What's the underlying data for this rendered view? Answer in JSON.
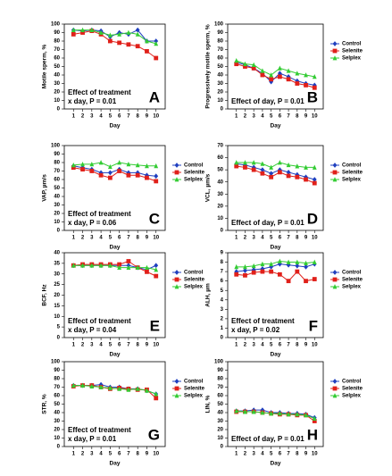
{
  "chart_data": [
    {
      "type": "line",
      "panel_label": "A",
      "ylabel": "Motile sperm, %",
      "xlabel": "Day",
      "annotation": [
        "Effect of treatment",
        "x day, P = 0.01"
      ],
      "legend": false,
      "x": [
        1,
        2,
        3,
        4,
        5,
        6,
        7,
        8,
        9,
        10
      ],
      "xlim": [
        0,
        11
      ],
      "xticks": [
        1,
        2,
        3,
        4,
        5,
        6,
        7,
        8,
        9,
        10
      ],
      "ylim": [
        0,
        100
      ],
      "yticks": [
        0,
        10,
        20,
        30,
        40,
        50,
        60,
        70,
        80,
        90,
        100
      ],
      "series": [
        {
          "name": "Control",
          "color": "#1f3fbf",
          "marker": "diamond",
          "values": [
            93,
            92,
            93,
            92,
            85,
            90,
            88,
            93,
            80,
            80
          ]
        },
        {
          "name": "Selenite",
          "color": "#e0201a",
          "marker": "square",
          "values": [
            88,
            90,
            92,
            88,
            80,
            78,
            76,
            74,
            68,
            60
          ]
        },
        {
          "name": "Selplex",
          "color": "#33cc33",
          "marker": "triangle",
          "values": [
            93,
            93,
            93,
            90,
            87,
            88,
            90,
            88,
            80,
            77
          ]
        }
      ]
    },
    {
      "type": "line",
      "panel_label": "B",
      "ylabel": "Progressively motile sperm, %",
      "xlabel": "Day",
      "annotation": [
        "Effect of day, P = 0.01"
      ],
      "legend": true,
      "x": [
        1,
        2,
        3,
        4,
        5,
        6,
        7,
        8,
        9,
        10
      ],
      "xlim": [
        0,
        11
      ],
      "xticks": [
        1,
        2,
        3,
        4,
        5,
        6,
        7,
        8,
        9,
        10
      ],
      "ylim": [
        0,
        100
      ],
      "yticks": [
        0,
        10,
        20,
        30,
        40,
        50,
        60,
        70,
        80,
        90,
        100
      ],
      "series": [
        {
          "name": "Control",
          "color": "#1f3fbf",
          "marker": "diamond",
          "values": [
            55,
            52,
            48,
            42,
            32,
            42,
            38,
            33,
            30,
            28
          ]
        },
        {
          "name": "Selenite",
          "color": "#e0201a",
          "marker": "square",
          "values": [
            53,
            50,
            48,
            40,
            35,
            38,
            35,
            30,
            28,
            25
          ]
        },
        {
          "name": "Selplex",
          "color": "#33cc33",
          "marker": "triangle",
          "values": [
            57,
            53,
            52,
            45,
            40,
            48,
            45,
            42,
            40,
            38
          ]
        }
      ]
    },
    {
      "type": "line",
      "panel_label": "C",
      "ylabel": "VAP, µm/s",
      "xlabel": "Day",
      "annotation": [
        "Effect of treatment",
        "x day, P = 0.06"
      ],
      "legend": true,
      "x": [
        1,
        2,
        3,
        4,
        5,
        6,
        7,
        8,
        9,
        10
      ],
      "xlim": [
        0,
        11
      ],
      "xticks": [
        1,
        2,
        3,
        4,
        5,
        6,
        7,
        8,
        9,
        10
      ],
      "ylim": [
        0,
        100
      ],
      "yticks": [
        0,
        10,
        20,
        30,
        40,
        50,
        60,
        70,
        80,
        90,
        100
      ],
      "series": [
        {
          "name": "Control",
          "color": "#1f3fbf",
          "marker": "diamond",
          "values": [
            76,
            74,
            72,
            68,
            68,
            72,
            68,
            68,
            65,
            64
          ]
        },
        {
          "name": "Selenite",
          "color": "#e0201a",
          "marker": "square",
          "values": [
            74,
            72,
            70,
            65,
            62,
            70,
            65,
            65,
            62,
            58
          ]
        },
        {
          "name": "Selplex",
          "color": "#33cc33",
          "marker": "triangle",
          "values": [
            77,
            78,
            78,
            80,
            75,
            80,
            78,
            77,
            76,
            76
          ]
        }
      ]
    },
    {
      "type": "line",
      "panel_label": "D",
      "ylabel": "VCL, µm/s",
      "xlabel": "Day",
      "annotation": [
        "Effect of day, P = 0.01"
      ],
      "legend": true,
      "x": [
        1,
        2,
        3,
        4,
        5,
        6,
        7,
        8,
        9,
        10
      ],
      "xlim": [
        0,
        11
      ],
      "xticks": [
        1,
        2,
        3,
        4,
        5,
        6,
        7,
        8,
        9,
        10
      ],
      "ylim": [
        0,
        70
      ],
      "yticks": [
        0,
        10,
        20,
        30,
        40,
        50,
        60,
        70
      ],
      "series": [
        {
          "name": "Control",
          "color": "#1f3fbf",
          "marker": "diamond",
          "values": [
            55,
            54,
            52,
            50,
            47,
            50,
            48,
            46,
            44,
            42
          ]
        },
        {
          "name": "Selenite",
          "color": "#e0201a",
          "marker": "square",
          "values": [
            53,
            52,
            50,
            47,
            44,
            48,
            45,
            44,
            42,
            39
          ]
        },
        {
          "name": "Selplex",
          "color": "#33cc33",
          "marker": "triangle",
          "values": [
            56,
            56,
            56,
            55,
            52,
            56,
            54,
            53,
            52,
            52
          ]
        }
      ]
    },
    {
      "type": "line",
      "panel_label": "E",
      "ylabel": "BCF, Hz",
      "xlabel": "Day",
      "annotation": [
        "Effect of treatment",
        "x day, P = 0.04"
      ],
      "legend": true,
      "x": [
        1,
        2,
        3,
        4,
        5,
        6,
        7,
        8,
        9,
        10
      ],
      "xlim": [
        0,
        11
      ],
      "xticks": [
        1,
        2,
        3,
        4,
        5,
        6,
        7,
        8,
        9,
        10
      ],
      "ylim": [
        0,
        40
      ],
      "yticks": [
        0,
        5,
        10,
        15,
        20,
        25,
        30,
        35,
        40
      ],
      "series": [
        {
          "name": "Control",
          "color": "#1f3fbf",
          "marker": "diamond",
          "values": [
            34,
            34,
            34,
            34,
            34,
            34,
            34,
            33,
            32,
            34
          ]
        },
        {
          "name": "Selenite",
          "color": "#e0201a",
          "marker": "square",
          "values": [
            34,
            34.5,
            34.5,
            34.5,
            34.5,
            34.5,
            36,
            33,
            31,
            29
          ]
        },
        {
          "name": "Selplex",
          "color": "#33cc33",
          "marker": "triangle",
          "values": [
            34,
            34,
            34,
            34,
            34,
            33,
            33,
            33,
            33,
            32
          ]
        }
      ]
    },
    {
      "type": "line",
      "panel_label": "F",
      "ylabel": "ALH, µm",
      "xlabel": "Day",
      "annotation": [
        "Effect of treatment",
        "x day, P = 0.02"
      ],
      "legend": true,
      "x": [
        1,
        2,
        3,
        4,
        5,
        6,
        7,
        8,
        9,
        10
      ],
      "xlim": [
        0,
        11
      ],
      "xticks": [
        1,
        2,
        3,
        4,
        5,
        6,
        7,
        8,
        9,
        10
      ],
      "ylim": [
        0,
        9
      ],
      "yticks": [
        0,
        1,
        2,
        3,
        4,
        5,
        6,
        7,
        8,
        9
      ],
      "series": [
        {
          "name": "Control",
          "color": "#1f3fbf",
          "marker": "diamond",
          "values": [
            7,
            7.1,
            7.2,
            7.3,
            7.5,
            7.8,
            7.7,
            7.6,
            7.5,
            7.8
          ]
        },
        {
          "name": "Selenite",
          "color": "#e0201a",
          "marker": "square",
          "values": [
            6.7,
            6.6,
            6.9,
            7,
            7,
            6.7,
            6,
            7,
            6,
            6.2
          ]
        },
        {
          "name": "Selplex",
          "color": "#33cc33",
          "marker": "triangle",
          "values": [
            7.5,
            7.5,
            7.6,
            7.8,
            7.8,
            8.1,
            8,
            8,
            7.9,
            8
          ]
        }
      ]
    },
    {
      "type": "line",
      "panel_label": "G",
      "ylabel": "STR, %",
      "xlabel": "Day",
      "annotation": [
        "Effect of treatment",
        "x day, P = 0.01"
      ],
      "legend": true,
      "x": [
        1,
        2,
        3,
        4,
        5,
        6,
        7,
        8,
        9,
        10
      ],
      "xlim": [
        0,
        11
      ],
      "xticks": [
        1,
        2,
        3,
        4,
        5,
        6,
        7,
        8,
        9,
        10
      ],
      "ylim": [
        0,
        100
      ],
      "yticks": [
        0,
        10,
        20,
        30,
        40,
        50,
        60,
        70,
        80,
        90,
        100
      ],
      "series": [
        {
          "name": "Control",
          "color": "#1f3fbf",
          "marker": "diamond",
          "values": [
            72,
            72,
            72,
            73,
            70,
            70,
            68,
            68,
            66,
            62
          ]
        },
        {
          "name": "Selenite",
          "color": "#e0201a",
          "marker": "square",
          "values": [
            71,
            72,
            72,
            70,
            68,
            69,
            68,
            67,
            67,
            57
          ]
        },
        {
          "name": "Selplex",
          "color": "#33cc33",
          "marker": "triangle",
          "values": [
            72,
            72,
            71,
            70,
            69,
            68,
            67,
            68,
            66,
            62
          ]
        }
      ]
    },
    {
      "type": "line",
      "panel_label": "H",
      "ylabel": "LIN, %",
      "xlabel": "Day",
      "annotation": [
        "Effect of day, P = 0.01"
      ],
      "legend": true,
      "x": [
        1,
        2,
        3,
        4,
        5,
        6,
        7,
        8,
        9,
        10
      ],
      "xlim": [
        0,
        11
      ],
      "xticks": [
        1,
        2,
        3,
        4,
        5,
        6,
        7,
        8,
        9,
        10
      ],
      "ylim": [
        0,
        100
      ],
      "yticks": [
        0,
        10,
        20,
        30,
        40,
        50,
        60,
        70,
        80,
        90,
        100
      ],
      "series": [
        {
          "name": "Control",
          "color": "#1f3fbf",
          "marker": "diamond",
          "values": [
            42,
            42,
            43,
            43,
            40,
            40,
            39,
            39,
            38,
            34
          ]
        },
        {
          "name": "Selenite",
          "color": "#e0201a",
          "marker": "square",
          "values": [
            41,
            41,
            41,
            40,
            39,
            38,
            38,
            37,
            37,
            30
          ]
        },
        {
          "name": "Selplex",
          "color": "#33cc33",
          "marker": "triangle",
          "values": [
            42,
            41,
            41,
            40,
            39,
            39,
            38,
            38,
            37,
            33
          ]
        }
      ]
    }
  ]
}
